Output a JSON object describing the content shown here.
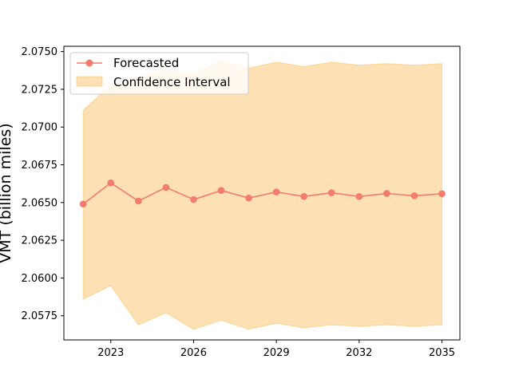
{
  "chart_data": {
    "type": "line",
    "title": "",
    "xlabel": "",
    "ylabel": "VMT (billion miles)",
    "x": [
      2022,
      2023,
      2024,
      2025,
      2026,
      2027,
      2028,
      2029,
      2030,
      2031,
      2032,
      2033,
      2034,
      2035
    ],
    "xlim": [
      2021.3,
      2035.65
    ],
    "ylim": [
      2.0559,
      2.07535
    ],
    "xticks": [
      2023,
      2026,
      2029,
      2032,
      2035
    ],
    "yticks": [
      2.0575,
      2.06,
      2.0625,
      2.065,
      2.0675,
      2.07,
      2.0725,
      2.075
    ],
    "ytick_labels": [
      "2.0575",
      "2.0600",
      "2.0625",
      "2.0650",
      "2.0675",
      "2.0700",
      "2.0725",
      "2.0750"
    ],
    "grid": false,
    "legend_position": "top-left",
    "series": [
      {
        "name": "Forecasted",
        "color": "#f47c6e",
        "values": [
          2.0649,
          2.0663,
          2.0651,
          2.066,
          2.0652,
          2.0658,
          2.0653,
          2.0657,
          2.0654,
          2.06565,
          2.0654,
          2.0656,
          2.06545,
          2.06558
        ]
      }
    ],
    "band": {
      "name": "Confidence Interval",
      "color": "#fcc46a",
      "lower": [
        2.0586,
        2.0595,
        2.0569,
        2.0577,
        2.0566,
        2.0572,
        2.0566,
        2.057,
        2.0567,
        2.0569,
        2.0568,
        2.0569,
        2.0568,
        2.0569
      ],
      "upper": [
        2.0711,
        2.0728,
        2.0733,
        2.0738,
        2.0735,
        2.0744,
        2.0739,
        2.0743,
        2.074,
        2.0743,
        2.0741,
        2.0742,
        2.0741,
        2.0742
      ]
    }
  }
}
